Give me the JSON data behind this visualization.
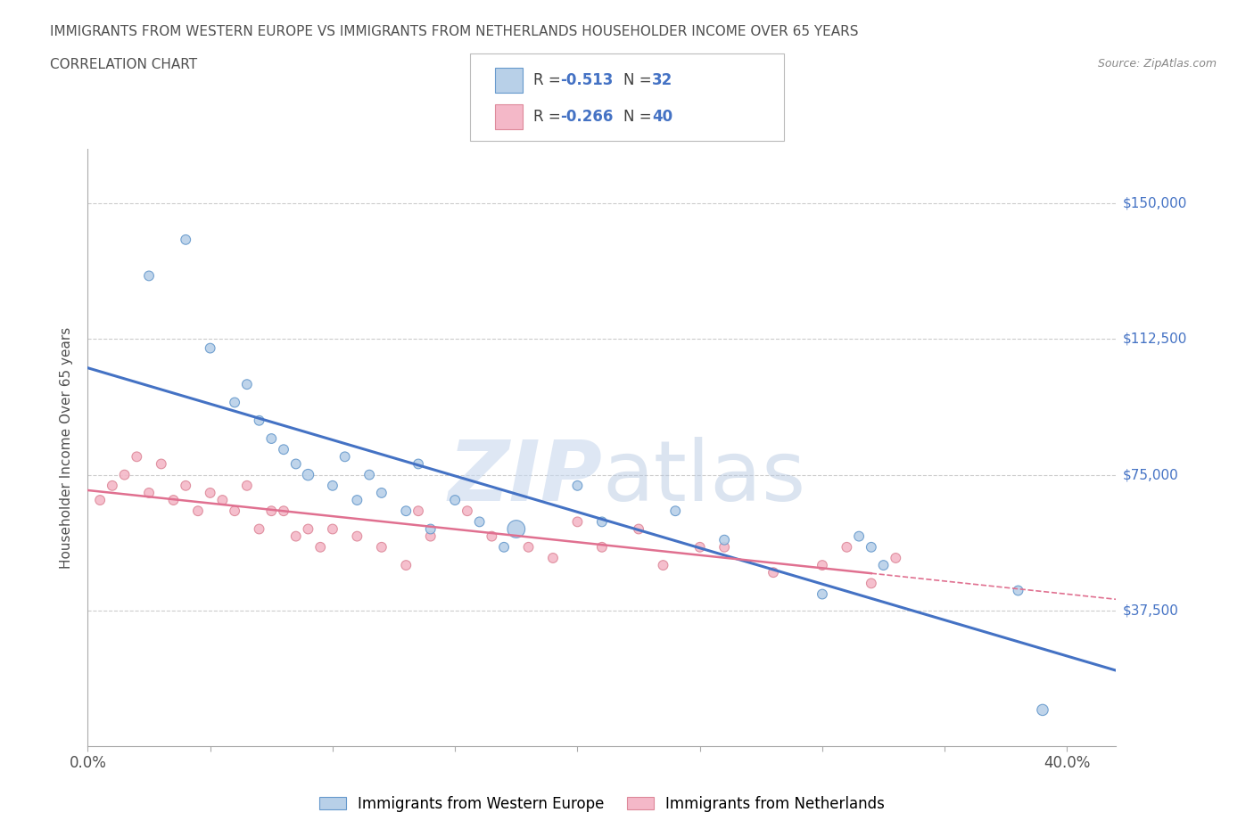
{
  "title_line1": "IMMIGRANTS FROM WESTERN EUROPE VS IMMIGRANTS FROM NETHERLANDS HOUSEHOLDER INCOME OVER 65 YEARS",
  "title_line2": "CORRELATION CHART",
  "source": "Source: ZipAtlas.com",
  "ylabel": "Householder Income Over 65 years",
  "watermark_zip": "ZIP",
  "watermark_atlas": "atlas",
  "xlim": [
    0.0,
    0.42
  ],
  "ylim": [
    0,
    165000
  ],
  "xtick_positions": [
    0.0,
    0.05,
    0.1,
    0.15,
    0.2,
    0.25,
    0.3,
    0.35,
    0.4
  ],
  "ytick_positions": [
    0,
    37500,
    75000,
    112500,
    150000
  ],
  "ytick_labels": [
    "",
    "$37,500",
    "$75,000",
    "$112,500",
    "$150,000"
  ],
  "hline_positions": [
    37500,
    75000,
    112500,
    150000
  ],
  "blue_R": "-0.513",
  "blue_N": "32",
  "pink_R": "-0.266",
  "pink_N": "40",
  "blue_fill_color": "#b8d0e8",
  "pink_fill_color": "#f4b8c8",
  "blue_edge_color": "#6699cc",
  "pink_edge_color": "#dd8899",
  "blue_line_color": "#4472c4",
  "pink_line_color": "#e07090",
  "right_label_color": "#4472c4",
  "legend_label1": "Immigrants from Western Europe",
  "legend_label2": "Immigrants from Netherlands",
  "blue_scatter_x": [
    0.025,
    0.04,
    0.05,
    0.06,
    0.065,
    0.07,
    0.075,
    0.08,
    0.085,
    0.09,
    0.1,
    0.105,
    0.11,
    0.115,
    0.12,
    0.13,
    0.135,
    0.14,
    0.15,
    0.16,
    0.17,
    0.175,
    0.2,
    0.21,
    0.24,
    0.26,
    0.3,
    0.315,
    0.32,
    0.325,
    0.38,
    0.39
  ],
  "blue_scatter_y": [
    130000,
    140000,
    110000,
    95000,
    100000,
    90000,
    85000,
    82000,
    78000,
    75000,
    72000,
    80000,
    68000,
    75000,
    70000,
    65000,
    78000,
    60000,
    68000,
    62000,
    55000,
    60000,
    72000,
    62000,
    65000,
    57000,
    42000,
    58000,
    55000,
    50000,
    43000,
    10000
  ],
  "blue_scatter_sizes": [
    60,
    60,
    60,
    60,
    60,
    60,
    60,
    60,
    60,
    80,
    60,
    60,
    60,
    60,
    60,
    60,
    60,
    60,
    60,
    60,
    60,
    200,
    60,
    60,
    60,
    60,
    60,
    60,
    60,
    60,
    60,
    80
  ],
  "pink_scatter_x": [
    0.005,
    0.01,
    0.015,
    0.02,
    0.025,
    0.03,
    0.035,
    0.04,
    0.045,
    0.05,
    0.055,
    0.06,
    0.065,
    0.07,
    0.075,
    0.08,
    0.085,
    0.09,
    0.095,
    0.1,
    0.11,
    0.12,
    0.13,
    0.135,
    0.14,
    0.155,
    0.165,
    0.18,
    0.19,
    0.2,
    0.21,
    0.225,
    0.235,
    0.25,
    0.26,
    0.28,
    0.3,
    0.31,
    0.32,
    0.33
  ],
  "pink_scatter_y": [
    68000,
    72000,
    75000,
    80000,
    70000,
    78000,
    68000,
    72000,
    65000,
    70000,
    68000,
    65000,
    72000,
    60000,
    65000,
    65000,
    58000,
    60000,
    55000,
    60000,
    58000,
    55000,
    50000,
    65000,
    58000,
    65000,
    58000,
    55000,
    52000,
    62000,
    55000,
    60000,
    50000,
    55000,
    55000,
    48000,
    50000,
    55000,
    45000,
    52000
  ],
  "pink_scatter_sizes": [
    60,
    60,
    60,
    60,
    60,
    60,
    60,
    60,
    60,
    60,
    60,
    60,
    60,
    60,
    60,
    60,
    60,
    60,
    60,
    60,
    60,
    60,
    60,
    60,
    60,
    60,
    60,
    60,
    60,
    60,
    60,
    60,
    60,
    60,
    60,
    60,
    60,
    60,
    60,
    60
  ],
  "background_color": "#ffffff",
  "title_color": "#505050",
  "grid_color": "#cccccc",
  "pink_line_end_x": 0.32,
  "blue_line_start_x": 0.0,
  "blue_line_end_x": 0.42
}
